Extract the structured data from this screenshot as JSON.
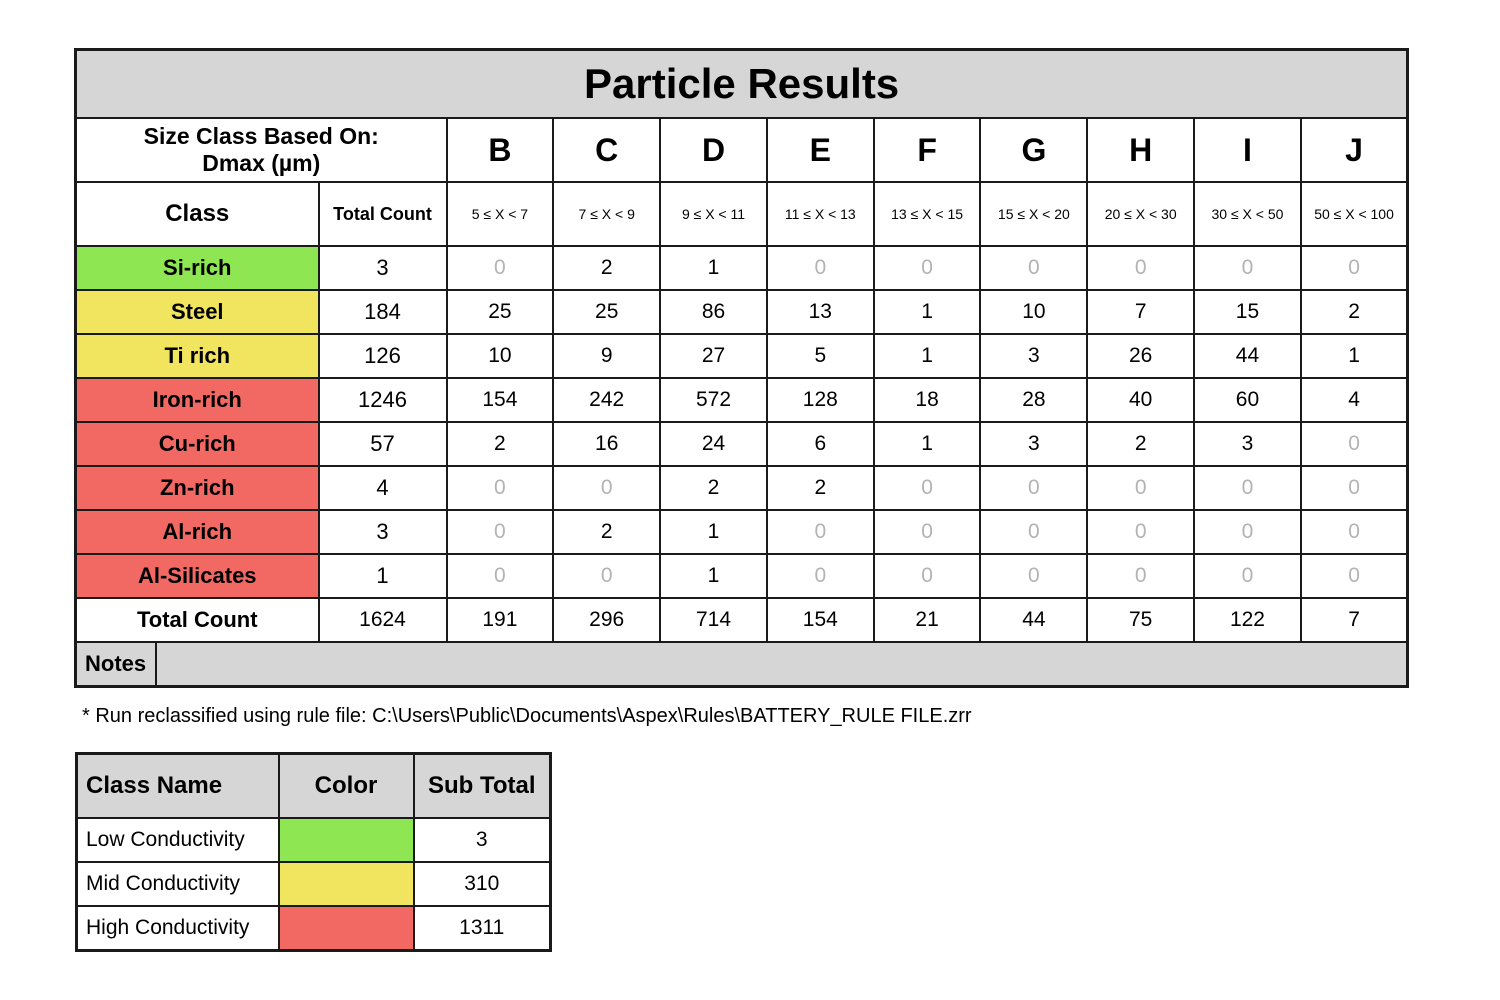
{
  "title": "Particle Results",
  "size_class_label": "Size Class Based On:\nDmax (µm)",
  "class_header": "Class",
  "total_count_header": "Total Count",
  "size_letters": [
    "B",
    "C",
    "D",
    "E",
    "F",
    "G",
    "H",
    "I",
    "J"
  ],
  "size_ranges": [
    "5 ≤ X < 7",
    "7 ≤ X < 9",
    "9 ≤ X < 11",
    "11 ≤ X < 13",
    "13 ≤ X < 15",
    "15 ≤ X < 20",
    "20 ≤ X < 30",
    "30 ≤ X < 50",
    "50 ≤ X < 100"
  ],
  "rows": [
    {
      "name": "Si-rich",
      "color": "#8ee653",
      "total": "3",
      "values": [
        "0",
        "2",
        "1",
        "0",
        "0",
        "0",
        "0",
        "0",
        "0"
      ]
    },
    {
      "name": "Steel",
      "color": "#f1e45f",
      "total": "184",
      "values": [
        "25",
        "25",
        "86",
        "13",
        "1",
        "10",
        "7",
        "15",
        "2"
      ]
    },
    {
      "name": "Ti rich",
      "color": "#f1e45f",
      "total": "126",
      "values": [
        "10",
        "9",
        "27",
        "5",
        "1",
        "3",
        "26",
        "44",
        "1"
      ]
    },
    {
      "name": "Iron-rich",
      "color": "#f26863",
      "total": "1246",
      "values": [
        "154",
        "242",
        "572",
        "128",
        "18",
        "28",
        "40",
        "60",
        "4"
      ]
    },
    {
      "name": "Cu-rich",
      "color": "#f26863",
      "total": "57",
      "values": [
        "2",
        "16",
        "24",
        "6",
        "1",
        "3",
        "2",
        "3",
        "0"
      ]
    },
    {
      "name": "Zn-rich",
      "color": "#f26863",
      "total": "4",
      "values": [
        "0",
        "0",
        "2",
        "2",
        "0",
        "0",
        "0",
        "0",
        "0"
      ]
    },
    {
      "name": "Al-rich",
      "color": "#f26863",
      "total": "3",
      "values": [
        "0",
        "2",
        "1",
        "0",
        "0",
        "0",
        "0",
        "0",
        "0"
      ]
    },
    {
      "name": "Al-Silicates",
      "color": "#f26863",
      "total": "1",
      "values": [
        "0",
        "0",
        "1",
        "0",
        "0",
        "0",
        "0",
        "0",
        "0"
      ]
    }
  ],
  "total_row": {
    "label": "Total Count",
    "total": "1624",
    "values": [
      "191",
      "296",
      "714",
      "154",
      "21",
      "44",
      "75",
      "122",
      "7"
    ]
  },
  "notes_label": "Notes",
  "notes_value": "",
  "footnote": "* Run reclassified using rule file: C:\\Users\\Public\\Documents\\Aspex\\Rules\\BATTERY_RULE FILE.zrr",
  "legend": {
    "headers": [
      "Class Name",
      "Color",
      "Sub Total"
    ],
    "items": [
      {
        "name": "Low Conductivity",
        "color": "#8ee653",
        "subtotal": "3"
      },
      {
        "name": "Mid Conductivity",
        "color": "#f1e45f",
        "subtotal": "310"
      },
      {
        "name": "High Conductivity",
        "color": "#f26863",
        "subtotal": "1311"
      }
    ]
  },
  "colors": {
    "header_grey": "#d6d6d6",
    "zero_grey": "#b3b3b3",
    "low": "#8ee653",
    "mid": "#f1e45f",
    "high": "#f26863"
  }
}
